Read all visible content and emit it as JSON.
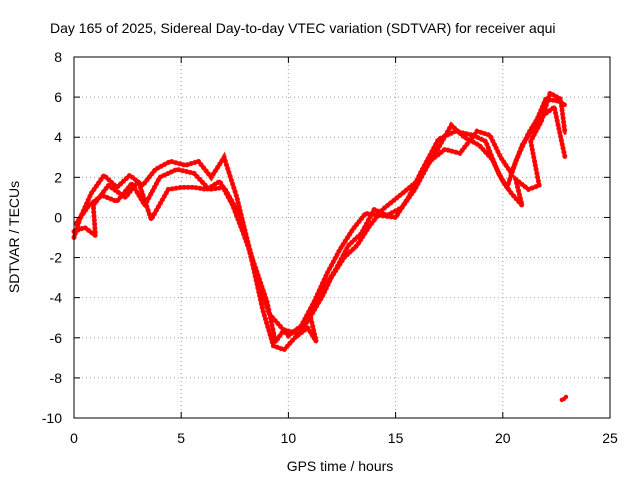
{
  "chart_data": {
    "type": "scatter",
    "title": "Day 165 of 2025, Sidereal Day-to-day VTEC variation (SDTVAR) for receiver aqui",
    "xlabel": "GPS time / hours",
    "ylabel": "SDTVAR / TECUs",
    "xlim": [
      0,
      25
    ],
    "ylim": [
      -10,
      8
    ],
    "xticks": [
      0,
      5,
      10,
      15,
      20,
      25
    ],
    "yticks": [
      -10,
      -8,
      -6,
      -4,
      -2,
      0,
      2,
      4,
      6,
      8
    ],
    "grid": true,
    "marker_color": "#ff0000",
    "series": [
      {
        "name": "satellite-track-1",
        "points": [
          [
            0.0,
            -1.0
          ],
          [
            0.3,
            0.0
          ],
          [
            0.8,
            1.2
          ],
          [
            1.4,
            2.1
          ],
          [
            2.0,
            1.5
          ],
          [
            2.6,
            2.1
          ],
          [
            3.2,
            1.6
          ],
          [
            3.8,
            2.4
          ],
          [
            4.5,
            2.8
          ],
          [
            5.2,
            2.6
          ],
          [
            5.8,
            2.8
          ],
          [
            6.4,
            2.0
          ],
          [
            7.0,
            3.0
          ],
          [
            7.6,
            1.0
          ],
          [
            8.1,
            -1.2
          ],
          [
            8.6,
            -3.2
          ],
          [
            9.1,
            -4.8
          ],
          [
            9.6,
            -5.4
          ],
          [
            10.0,
            -5.9
          ],
          [
            10.6,
            -5.4
          ],
          [
            11.2,
            -4.2
          ],
          [
            11.8,
            -2.8
          ],
          [
            12.4,
            -1.6
          ],
          [
            13.0,
            -0.6
          ],
          [
            13.6,
            0.2
          ],
          [
            14.2,
            0.1
          ],
          [
            15.0,
            0.0
          ],
          [
            15.6,
            1.0
          ],
          [
            16.2,
            2.3
          ],
          [
            17.0,
            3.9
          ],
          [
            17.8,
            4.3
          ],
          [
            18.6,
            4.1
          ],
          [
            19.2,
            3.8
          ],
          [
            19.8,
            2.2
          ],
          [
            20.2,
            1.5
          ],
          [
            20.6,
            2.8
          ],
          [
            21.2,
            4.2
          ],
          [
            21.6,
            4.9
          ],
          [
            22.0,
            5.9
          ],
          [
            22.6,
            5.8
          ],
          [
            22.9,
            5.6
          ]
        ]
      },
      {
        "name": "satellite-track-2",
        "points": [
          [
            0.1,
            -0.3
          ],
          [
            0.7,
            0.6
          ],
          [
            1.3,
            1.1
          ],
          [
            2.0,
            0.8
          ],
          [
            2.7,
            1.7
          ],
          [
            3.3,
            0.6
          ],
          [
            4.0,
            2.0
          ],
          [
            4.8,
            2.4
          ],
          [
            5.6,
            2.2
          ],
          [
            6.3,
            1.4
          ],
          [
            7.0,
            1.5
          ],
          [
            7.8,
            0.0
          ],
          [
            8.3,
            -2.2
          ],
          [
            8.8,
            -4.6
          ],
          [
            9.3,
            -6.4
          ],
          [
            9.8,
            -6.6
          ],
          [
            10.3,
            -6.0
          ],
          [
            10.9,
            -5.5
          ],
          [
            11.3,
            -6.2
          ],
          [
            11.0,
            -4.8
          ],
          [
            11.6,
            -3.6
          ],
          [
            12.2,
            -2.6
          ],
          [
            12.8,
            -1.4
          ],
          [
            13.4,
            -0.8
          ],
          [
            14.0,
            0.4
          ],
          [
            14.6,
            0.1
          ],
          [
            15.3,
            0.5
          ],
          [
            15.9,
            1.4
          ],
          [
            16.6,
            2.8
          ],
          [
            17.3,
            3.4
          ],
          [
            18.0,
            3.2
          ],
          [
            18.8,
            4.3
          ],
          [
            19.4,
            4.1
          ],
          [
            19.9,
            3.0
          ],
          [
            20.4,
            2.2
          ],
          [
            20.9,
            3.6
          ],
          [
            21.4,
            4.4
          ],
          [
            21.9,
            5.1
          ],
          [
            22.4,
            5.5
          ],
          [
            22.9,
            3.0
          ]
        ]
      },
      {
        "name": "satellite-track-3",
        "points": [
          [
            0.0,
            -0.7
          ],
          [
            0.5,
            -0.5
          ],
          [
            1.0,
            -0.9
          ],
          [
            0.9,
            0.6
          ],
          [
            1.6,
            1.6
          ],
          [
            2.4,
            1.0
          ],
          [
            3.0,
            1.8
          ],
          [
            3.6,
            -0.1
          ],
          [
            4.4,
            1.4
          ],
          [
            5.0,
            1.5
          ],
          [
            5.6,
            1.5
          ],
          [
            6.2,
            1.4
          ],
          [
            6.8,
            1.8
          ],
          [
            7.4,
            0.6
          ],
          [
            7.9,
            -0.8
          ],
          [
            8.5,
            -2.6
          ],
          [
            9.0,
            -4.2
          ],
          [
            9.4,
            -6.2
          ],
          [
            9.8,
            -5.6
          ],
          [
            10.5,
            -5.8
          ],
          [
            11.0,
            -5.0
          ],
          [
            11.6,
            -3.9
          ],
          [
            12.0,
            -3.0
          ],
          [
            12.6,
            -2.0
          ],
          [
            13.2,
            -1.4
          ],
          [
            13.8,
            -0.4
          ],
          [
            14.4,
            0.4
          ],
          [
            15.2,
            1.1
          ],
          [
            16.0,
            1.8
          ],
          [
            16.8,
            3.1
          ],
          [
            17.6,
            4.6
          ],
          [
            18.2,
            4.0
          ],
          [
            18.9,
            3.6
          ],
          [
            19.5,
            2.9
          ],
          [
            20.0,
            1.8
          ],
          [
            20.4,
            1.2
          ],
          [
            20.9,
            0.6
          ],
          [
            20.6,
            1.9
          ],
          [
            21.2,
            1.4
          ],
          [
            21.7,
            1.6
          ],
          [
            21.3,
            3.8
          ],
          [
            21.8,
            4.8
          ],
          [
            22.2,
            6.2
          ],
          [
            22.7,
            5.9
          ],
          [
            22.9,
            4.2
          ]
        ]
      },
      {
        "name": "isolated-point",
        "points": [
          [
            22.85,
            -9.05
          ],
          [
            22.75,
            -9.1
          ],
          [
            22.95,
            -8.95
          ]
        ]
      }
    ]
  }
}
